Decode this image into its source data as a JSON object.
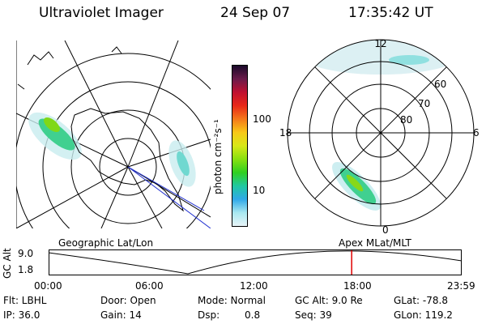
{
  "header": {
    "instrument": "Ultraviolet Imager",
    "date": "24 Sep 07",
    "time": "17:35:42 UT"
  },
  "geo_panel": {
    "caption": "Geographic Lat/Lon"
  },
  "colorbar": {
    "unit_label": "photon cm⁻²s⁻¹",
    "ticks": [
      "100",
      "10"
    ],
    "colors": [
      "#1a0a2a",
      "#6a1a4a",
      "#c01030",
      "#e82818",
      "#f4781a",
      "#f8c818",
      "#d8e818",
      "#88e010",
      "#30d020",
      "#20c8a0",
      "#30a8e8",
      "#a8e8f0",
      "#e8f4f8"
    ]
  },
  "mag_panel": {
    "caption": "Apex MLat/MLT",
    "mlt_labels": {
      "top": "12",
      "left": "18",
      "right": "6",
      "bottom": "0"
    },
    "mlat_labels": [
      "60",
      "70",
      "80"
    ]
  },
  "timeline": {
    "ylabel": "GC Alt",
    "yticks": [
      "9.0",
      "1.8"
    ],
    "xticks": [
      "00:00",
      "06:00",
      "12:00",
      "18:00",
      "23:59"
    ],
    "marker_time": "17:35:42",
    "marker_color": "#e00000"
  },
  "info": {
    "filter": "Flt: LBHL",
    "ip": "IP: 36.0",
    "door": "Door: Open",
    "gain": "Gain: 14",
    "mode": "Mode: Normal",
    "dsp_label": "Dsp:",
    "dsp_value": "0.8",
    "gc_alt": "GC Alt: 9.0 Re",
    "seq": "Seq: 39",
    "glat": "GLat: -78.8",
    "glon": "GLon: 119.2"
  }
}
